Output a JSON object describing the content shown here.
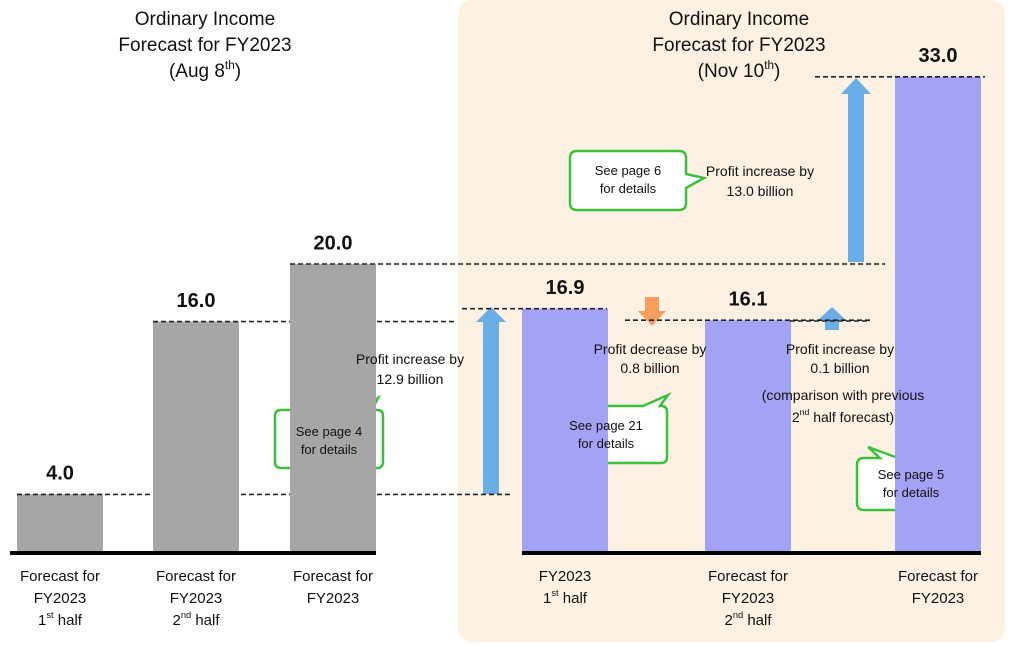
{
  "chart_data": {
    "type": "bar",
    "panels": [
      {
        "title": [
          [
            "Ordinary Income"
          ],
          [
            "Forecast for FY2023"
          ],
          [
            "(Aug 8",
            "th",
            ")"
          ]
        ],
        "color": "#a6a6a6",
        "bars": [
          {
            "value": 4.0,
            "label": "4.0",
            "category": [
              [
                "Forecast for"
              ],
              [
                "FY2023"
              ],
              [
                "1",
                "st",
                " half"
              ]
            ]
          },
          {
            "value": 16.0,
            "label": "16.0",
            "category": [
              [
                "Forecast for"
              ],
              [
                "FY2023"
              ],
              [
                "2",
                "nd",
                " half"
              ]
            ]
          },
          {
            "value": 20.0,
            "label": "20.0",
            "category": [
              [
                "Forecast for"
              ],
              [
                "FY2023"
              ]
            ]
          }
        ]
      },
      {
        "title": [
          [
            "Ordinary Income"
          ],
          [
            "Forecast for FY2023"
          ],
          [
            "(Nov 10",
            "th",
            ")"
          ]
        ],
        "color": "#a3a3f5",
        "bars": [
          {
            "value": 16.9,
            "label": "16.9",
            "category": [
              [
                "FY2023"
              ],
              [
                "1",
                "st",
                " half"
              ]
            ]
          },
          {
            "value": 16.1,
            "label": "16.1",
            "category": [
              [
                "Forecast for"
              ],
              [
                "FY2023"
              ],
              [
                "2",
                "nd",
                " half"
              ]
            ]
          },
          {
            "value": 33.0,
            "label": "33.0",
            "category": [
              [
                "Forecast for"
              ],
              [
                "FY2023"
              ]
            ]
          }
        ]
      }
    ],
    "annotations": [
      [
        [
          "Profit increase by"
        ],
        [
          "12.9 billion"
        ]
      ],
      [
        [
          "Profit increase by"
        ],
        [
          "13.0 billion"
        ]
      ],
      [
        [
          "Profit decrease by"
        ],
        [
          "0.8 billion"
        ]
      ],
      [
        [
          "Profit increase by"
        ],
        [
          "0.1 billion"
        ]
      ],
      [
        [
          "(comparison with previous"
        ],
        [
          "2",
          "nd",
          " half forecast)"
        ]
      ]
    ],
    "callouts": [
      [
        [
          "See page 4"
        ],
        [
          "for details"
        ]
      ],
      [
        [
          "See page 6"
        ],
        [
          "for details"
        ]
      ],
      [
        [
          "See page 21"
        ],
        [
          "for details"
        ]
      ],
      [
        [
          "See page 5"
        ],
        [
          "for details"
        ]
      ]
    ]
  }
}
